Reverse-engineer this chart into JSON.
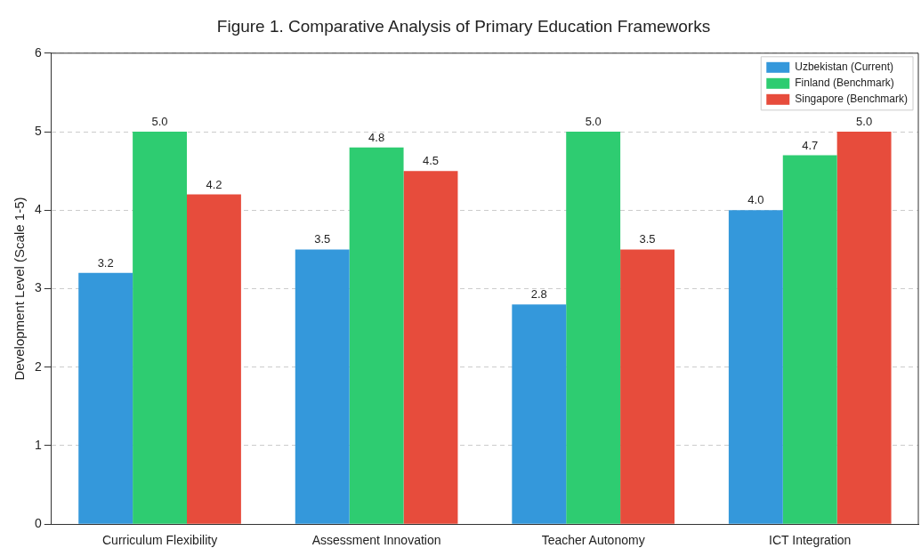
{
  "chart_data": {
    "type": "bar",
    "title": "Figure 1. Comparative Analysis of Primary Education Frameworks",
    "ylabel": "Development Level (Scale 1-5)",
    "categories": [
      "Curriculum Flexibility",
      "Assessment Innovation",
      "Teacher Autonomy",
      "ICT Integration"
    ],
    "series": [
      {
        "name": "Uzbekistan (Current)",
        "color": "#3498db",
        "values": [
          3.2,
          3.5,
          2.8,
          4.0
        ],
        "value_labels": [
          "3.2",
          "3.5",
          "2.8",
          "4.0"
        ]
      },
      {
        "name": "Finland (Benchmark)",
        "color": "#2ecc71",
        "values": [
          5.0,
          4.8,
          5.0,
          4.7
        ],
        "value_labels": [
          "5.0",
          "4.8",
          "5.0",
          "4.7"
        ]
      },
      {
        "name": "Singapore (Benchmark)",
        "color": "#e74c3c",
        "values": [
          4.2,
          4.5,
          3.5,
          5.0
        ],
        "value_labels": [
          "4.2",
          "4.5",
          "3.5",
          "5.0"
        ]
      }
    ],
    "ylim": [
      0,
      6
    ],
    "yticks": [
      0,
      1,
      2,
      3,
      4,
      5,
      6
    ],
    "grid": "y",
    "legend": "top right"
  }
}
